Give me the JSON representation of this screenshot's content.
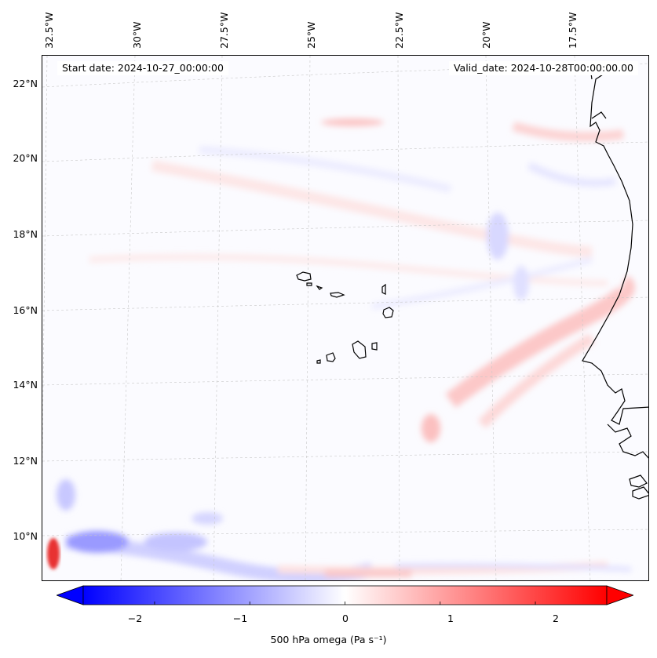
{
  "map": {
    "start_date": "Start date: 2024-10-27_00:00:00",
    "valid_date": "Valid_date: 2024-10-28T00:00:00.00",
    "lon_labels": [
      "32.5°W",
      "30°W",
      "27.5°W",
      "25°W",
      "22.5°W",
      "20°W",
      "17.5°W"
    ],
    "lat_labels": [
      "22°N",
      "20°N",
      "18°N",
      "16°N",
      "14°N",
      "12°N",
      "10°N"
    ],
    "variable": "500 hPa omega",
    "colors": {
      "negative": "#0000ff",
      "neutral": "#ffffff",
      "positive": "#ff0000",
      "coastline": "#000000"
    }
  },
  "colorbar": {
    "label": "500 hPa omega (Pa s⁻¹)",
    "ticks": [
      "−2",
      "−1",
      "0",
      "1",
      "2"
    ],
    "tick_values": [
      -2,
      -1,
      0,
      1,
      2
    ],
    "range": [
      -2.75,
      2.75
    ],
    "extend": "both"
  }
}
